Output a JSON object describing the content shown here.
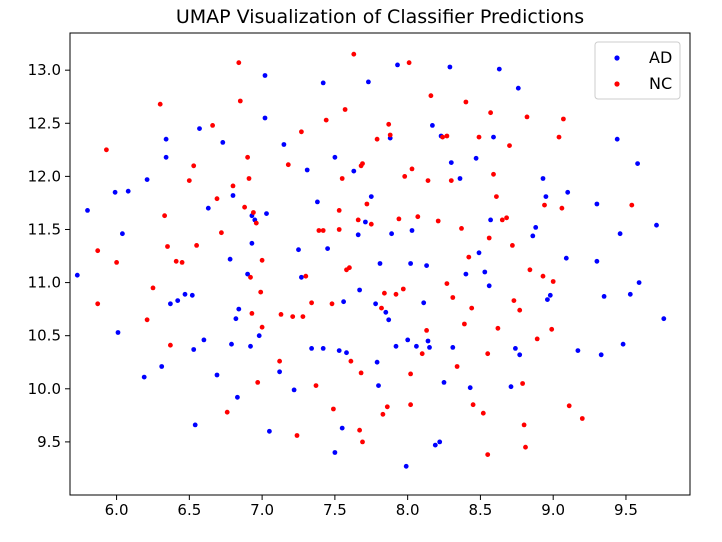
{
  "chart_data": {
    "type": "scatter",
    "title": "UMAP Visualization of Classifier Predictions",
    "xlabel": "",
    "ylabel": "",
    "xlim": [
      5.68,
      9.94
    ],
    "ylim": [
      9.0,
      13.35
    ],
    "x_ticks": [
      6.0,
      6.5,
      7.0,
      7.5,
      8.0,
      8.5,
      9.0,
      9.5
    ],
    "x_tick_labels": [
      "6.0",
      "6.5",
      "7.0",
      "7.5",
      "8.0",
      "8.5",
      "9.0",
      "9.5"
    ],
    "y_ticks": [
      9.5,
      10.0,
      10.5,
      11.0,
      11.5,
      12.0,
      12.5,
      13.0
    ],
    "y_tick_labels": [
      "9.5",
      "10.0",
      "10.5",
      "11.0",
      "11.5",
      "12.0",
      "12.5",
      "13.0"
    ],
    "grid": false,
    "legend_position": "top-right",
    "series": [
      {
        "name": "AD",
        "color": "#0000ff",
        "points": [
          [
            5.73,
            11.07
          ],
          [
            5.8,
            11.68
          ],
          [
            5.99,
            11.85
          ],
          [
            6.01,
            10.53
          ],
          [
            6.04,
            11.46
          ],
          [
            6.08,
            11.86
          ],
          [
            6.19,
            10.11
          ],
          [
            6.21,
            11.97
          ],
          [
            6.31,
            10.21
          ],
          [
            6.34,
            12.35
          ],
          [
            6.34,
            12.18
          ],
          [
            6.37,
            10.8
          ],
          [
            6.42,
            10.83
          ],
          [
            6.47,
            10.89
          ],
          [
            6.52,
            10.88
          ],
          [
            6.53,
            10.37
          ],
          [
            6.54,
            9.66
          ],
          [
            6.57,
            12.45
          ],
          [
            6.6,
            10.46
          ],
          [
            6.63,
            11.7
          ],
          [
            6.69,
            10.13
          ],
          [
            6.73,
            12.32
          ],
          [
            6.78,
            11.22
          ],
          [
            6.79,
            10.42
          ],
          [
            6.8,
            11.82
          ],
          [
            6.82,
            10.66
          ],
          [
            6.83,
            9.92
          ],
          [
            6.84,
            10.75
          ],
          [
            6.9,
            11.08
          ],
          [
            6.92,
            10.4
          ],
          [
            6.93,
            11.63
          ],
          [
            6.95,
            11.59
          ],
          [
            6.93,
            11.37
          ],
          [
            6.98,
            10.5
          ],
          [
            7.02,
            12.95
          ],
          [
            7.02,
            12.55
          ],
          [
            7.03,
            11.65
          ],
          [
            7.05,
            9.6
          ],
          [
            7.12,
            10.16
          ],
          [
            7.15,
            12.3
          ],
          [
            7.22,
            9.99
          ],
          [
            7.25,
            11.31
          ],
          [
            7.27,
            11.05
          ],
          [
            7.31,
            12.06
          ],
          [
            7.34,
            10.38
          ],
          [
            7.38,
            11.76
          ],
          [
            7.42,
            12.88
          ],
          [
            7.42,
            10.38
          ],
          [
            7.45,
            11.32
          ],
          [
            7.5,
            12.18
          ],
          [
            7.5,
            9.4
          ],
          [
            7.53,
            10.36
          ],
          [
            7.55,
            9.63
          ],
          [
            7.56,
            10.82
          ],
          [
            7.58,
            10.34
          ],
          [
            7.63,
            12.05
          ],
          [
            7.66,
            11.45
          ],
          [
            7.67,
            10.93
          ],
          [
            7.71,
            11.57
          ],
          [
            7.73,
            12.89
          ],
          [
            7.75,
            11.81
          ],
          [
            7.78,
            10.8
          ],
          [
            7.79,
            10.25
          ],
          [
            7.8,
            10.03
          ],
          [
            7.81,
            11.18
          ],
          [
            7.85,
            10.72
          ],
          [
            7.87,
            10.65
          ],
          [
            7.88,
            12.36
          ],
          [
            7.89,
            11.46
          ],
          [
            7.92,
            10.4
          ],
          [
            7.93,
            13.05
          ],
          [
            7.99,
            9.27
          ],
          [
            8.0,
            10.46
          ],
          [
            8.02,
            11.18
          ],
          [
            8.03,
            11.49
          ],
          [
            8.06,
            10.4
          ],
          [
            8.11,
            10.81
          ],
          [
            8.13,
            11.16
          ],
          [
            8.14,
            10.45
          ],
          [
            8.15,
            10.39
          ],
          [
            8.17,
            12.48
          ],
          [
            8.19,
            9.47
          ],
          [
            8.22,
            9.5
          ],
          [
            8.23,
            12.38
          ],
          [
            8.25,
            10.06
          ],
          [
            8.29,
            13.03
          ],
          [
            8.3,
            12.13
          ],
          [
            8.31,
            10.39
          ],
          [
            8.36,
            11.98
          ],
          [
            8.4,
            11.08
          ],
          [
            8.43,
            10.01
          ],
          [
            8.47,
            12.17
          ],
          [
            8.49,
            11.28
          ],
          [
            8.53,
            11.1
          ],
          [
            8.56,
            10.97
          ],
          [
            8.57,
            11.59
          ],
          [
            8.59,
            12.37
          ],
          [
            8.63,
            13.01
          ],
          [
            8.71,
            10.02
          ],
          [
            8.74,
            10.38
          ],
          [
            8.76,
            12.83
          ],
          [
            8.77,
            10.32
          ],
          [
            8.86,
            11.44
          ],
          [
            8.88,
            11.52
          ],
          [
            8.93,
            11.98
          ],
          [
            8.95,
            11.81
          ],
          [
            8.96,
            10.84
          ],
          [
            8.98,
            10.88
          ],
          [
            9.1,
            11.85
          ],
          [
            9.09,
            11.23
          ],
          [
            9.17,
            10.36
          ],
          [
            9.3,
            11.74
          ],
          [
            9.3,
            11.2
          ],
          [
            9.33,
            10.32
          ],
          [
            9.35,
            10.87
          ],
          [
            9.44,
            12.35
          ],
          [
            9.46,
            11.46
          ],
          [
            9.48,
            10.42
          ],
          [
            9.53,
            10.89
          ],
          [
            9.58,
            12.12
          ],
          [
            9.59,
            11.0
          ],
          [
            9.71,
            11.54
          ],
          [
            9.76,
            10.66
          ]
        ]
      },
      {
        "name": "NC",
        "color": "#ff0000",
        "points": [
          [
            5.87,
            11.3
          ],
          [
            5.87,
            10.8
          ],
          [
            5.93,
            12.25
          ],
          [
            6.0,
            11.19
          ],
          [
            6.21,
            10.65
          ],
          [
            6.25,
            10.95
          ],
          [
            6.3,
            12.68
          ],
          [
            6.33,
            11.63
          ],
          [
            6.35,
            11.34
          ],
          [
            6.37,
            10.41
          ],
          [
            6.41,
            11.2
          ],
          [
            6.45,
            11.19
          ],
          [
            6.5,
            11.96
          ],
          [
            6.53,
            12.1
          ],
          [
            6.55,
            11.35
          ],
          [
            6.66,
            12.48
          ],
          [
            6.69,
            11.79
          ],
          [
            6.72,
            11.47
          ],
          [
            6.76,
            9.78
          ],
          [
            6.8,
            11.91
          ],
          [
            6.84,
            13.07
          ],
          [
            6.85,
            12.71
          ],
          [
            6.88,
            11.71
          ],
          [
            6.9,
            12.18
          ],
          [
            6.91,
            11.98
          ],
          [
            6.92,
            11.05
          ],
          [
            6.93,
            10.71
          ],
          [
            6.94,
            11.66
          ],
          [
            6.96,
            11.56
          ],
          [
            6.97,
            10.06
          ],
          [
            6.99,
            10.91
          ],
          [
            7.0,
            11.21
          ],
          [
            7.0,
            10.58
          ],
          [
            7.12,
            10.26
          ],
          [
            7.13,
            10.7
          ],
          [
            7.18,
            12.11
          ],
          [
            7.21,
            10.68
          ],
          [
            7.24,
            9.56
          ],
          [
            7.27,
            12.42
          ],
          [
            7.28,
            10.68
          ],
          [
            7.3,
            11.06
          ],
          [
            7.34,
            10.81
          ],
          [
            7.37,
            10.03
          ],
          [
            7.39,
            11.49
          ],
          [
            7.42,
            11.49
          ],
          [
            7.44,
            12.53
          ],
          [
            7.48,
            10.8
          ],
          [
            7.49,
            9.81
          ],
          [
            7.53,
            11.5
          ],
          [
            7.53,
            11.68
          ],
          [
            7.55,
            11.98
          ],
          [
            7.57,
            12.63
          ],
          [
            7.58,
            11.12
          ],
          [
            7.6,
            11.14
          ],
          [
            7.61,
            10.26
          ],
          [
            7.63,
            13.15
          ],
          [
            7.66,
            11.59
          ],
          [
            7.67,
            9.61
          ],
          [
            7.68,
            10.15
          ],
          [
            7.68,
            12.1
          ],
          [
            7.69,
            12.12
          ],
          [
            7.69,
            9.5
          ],
          [
            7.72,
            11.74
          ],
          [
            7.75,
            11.55
          ],
          [
            7.79,
            12.35
          ],
          [
            7.82,
            10.76
          ],
          [
            7.83,
            9.76
          ],
          [
            7.84,
            10.9
          ],
          [
            7.86,
            9.83
          ],
          [
            7.87,
            12.49
          ],
          [
            7.88,
            12.39
          ],
          [
            7.92,
            10.89
          ],
          [
            7.94,
            11.6
          ],
          [
            7.97,
            10.94
          ],
          [
            7.98,
            12.0
          ],
          [
            8.01,
            13.07
          ],
          [
            8.02,
            10.14
          ],
          [
            8.02,
            9.85
          ],
          [
            8.03,
            12.07
          ],
          [
            8.07,
            11.62
          ],
          [
            8.1,
            10.33
          ],
          [
            8.13,
            10.55
          ],
          [
            8.14,
            11.96
          ],
          [
            8.16,
            12.76
          ],
          [
            8.21,
            11.58
          ],
          [
            8.24,
            12.37
          ],
          [
            8.27,
            12.38
          ],
          [
            8.27,
            10.99
          ],
          [
            8.3,
            11.96
          ],
          [
            8.31,
            10.86
          ],
          [
            8.34,
            10.21
          ],
          [
            8.37,
            11.51
          ],
          [
            8.39,
            10.61
          ],
          [
            8.4,
            12.7
          ],
          [
            8.42,
            11.24
          ],
          [
            8.44,
            10.76
          ],
          [
            8.45,
            9.85
          ],
          [
            8.49,
            12.37
          ],
          [
            8.52,
            9.77
          ],
          [
            8.55,
            10.33
          ],
          [
            8.56,
            11.42
          ],
          [
            8.57,
            12.6
          ],
          [
            8.59,
            12.02
          ],
          [
            8.61,
            11.81
          ],
          [
            8.62,
            10.57
          ],
          [
            8.65,
            11.59
          ],
          [
            8.68,
            11.61
          ],
          [
            8.7,
            12.29
          ],
          [
            8.72,
            11.35
          ],
          [
            8.73,
            10.83
          ],
          [
            8.77,
            10.74
          ],
          [
            8.79,
            10.05
          ],
          [
            8.8,
            9.66
          ],
          [
            8.81,
            9.45
          ],
          [
            8.82,
            12.56
          ],
          [
            8.84,
            11.12
          ],
          [
            8.89,
            10.47
          ],
          [
            8.93,
            11.06
          ],
          [
            8.94,
            11.73
          ],
          [
            8.99,
            10.56
          ],
          [
            9.0,
            11.01
          ],
          [
            9.04,
            12.37
          ],
          [
            9.06,
            11.7
          ],
          [
            9.07,
            12.54
          ],
          [
            9.11,
            9.84
          ],
          [
            9.2,
            9.72
          ],
          [
            9.54,
            11.73
          ],
          [
            8.55,
            9.38
          ]
        ]
      }
    ]
  }
}
